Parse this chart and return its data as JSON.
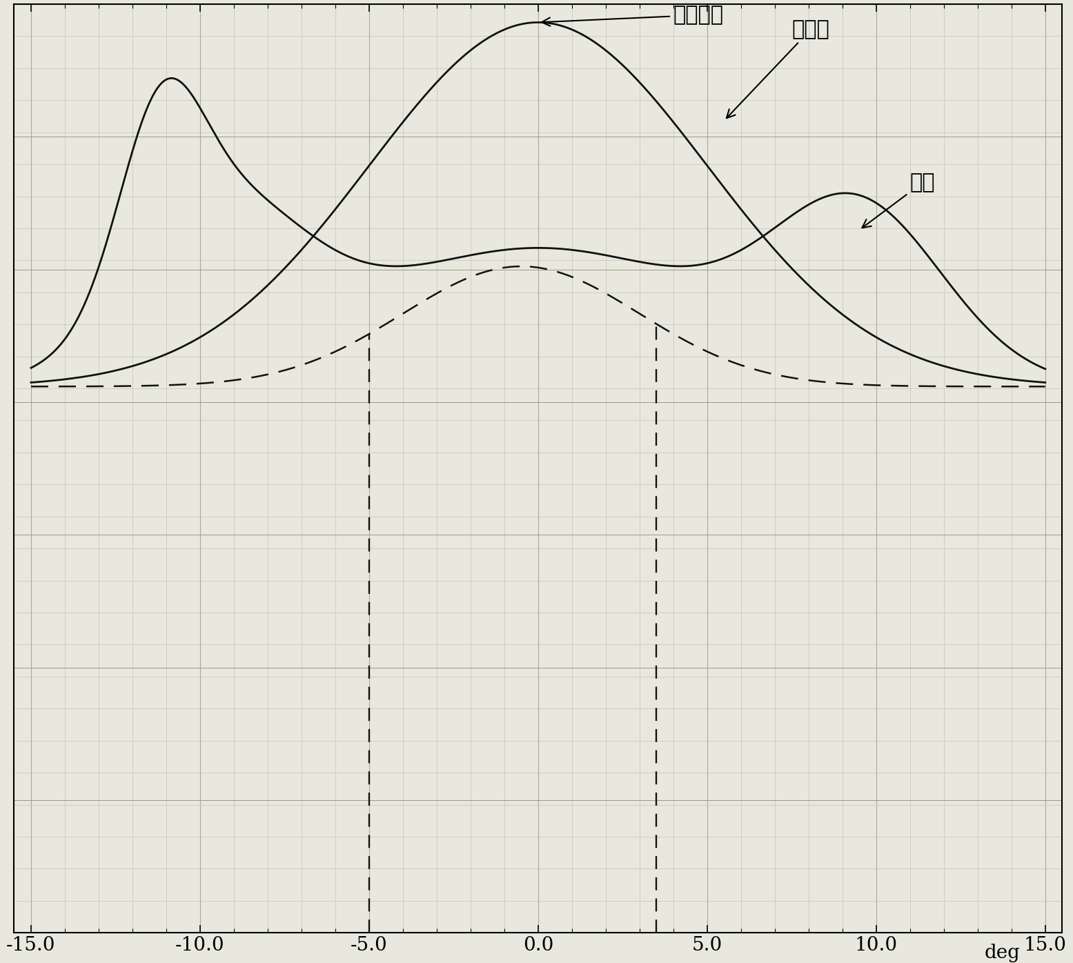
{
  "xlabel_deg": "deg",
  "xlim": [
    -15.0,
    15.0
  ],
  "xtick_labels": [
    "-15.0",
    "-10.0",
    "-5.0",
    "0.0",
    "5.0",
    "10.0",
    "15.0"
  ],
  "xtick_vals": [
    -15.0,
    -10.0,
    -5.0,
    0.0,
    5.0,
    10.0,
    15.0
  ],
  "background_color": "#e8e8de",
  "line_color": "#111111",
  "grid_major_color": "#999988",
  "grid_minor_color": "#bbbbaa",
  "annotation_beamMovable": "波束可动",
  "annotation_levelDiff": "电平差",
  "annotation_fixed": "固定"
}
